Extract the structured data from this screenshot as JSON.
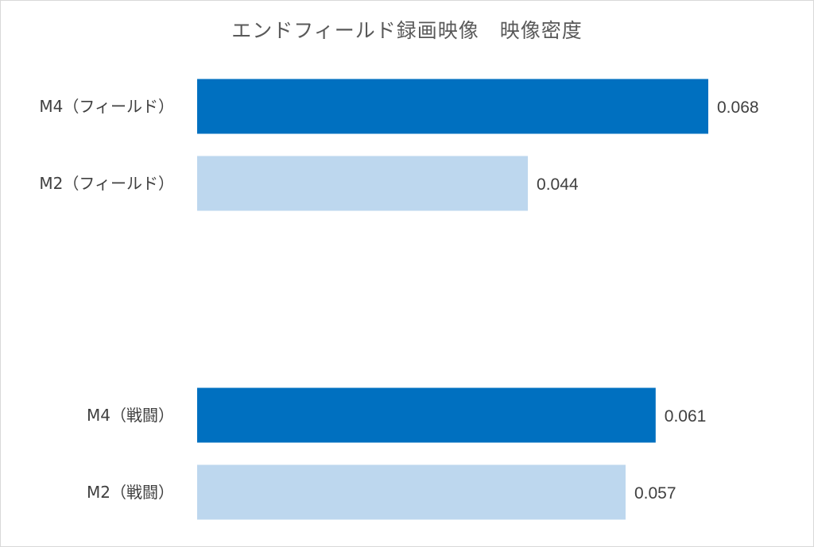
{
  "chart_data": {
    "type": "bar",
    "orientation": "horizontal",
    "title": "エンドフィールド録画映像　映像密度",
    "xlabel": "",
    "ylabel": "",
    "grid": false,
    "xlim": [
      0,
      0.07
    ],
    "groups": [
      {
        "bars": [
          {
            "category": "M4（フィールド）",
            "value": 0.068,
            "value_label": "0.068",
            "color": "#0070c0"
          },
          {
            "category": "M2（フィールド）",
            "value": 0.044,
            "value_label": "0.044",
            "color": "#bdd7ee"
          }
        ]
      },
      {
        "bars": [
          {
            "category": "M4（戦闘）",
            "value": 0.061,
            "value_label": "0.061",
            "color": "#0070c0"
          },
          {
            "category": "M2（戦闘）",
            "value": 0.057,
            "value_label": "0.057",
            "color": "#bdd7ee"
          }
        ]
      }
    ]
  }
}
